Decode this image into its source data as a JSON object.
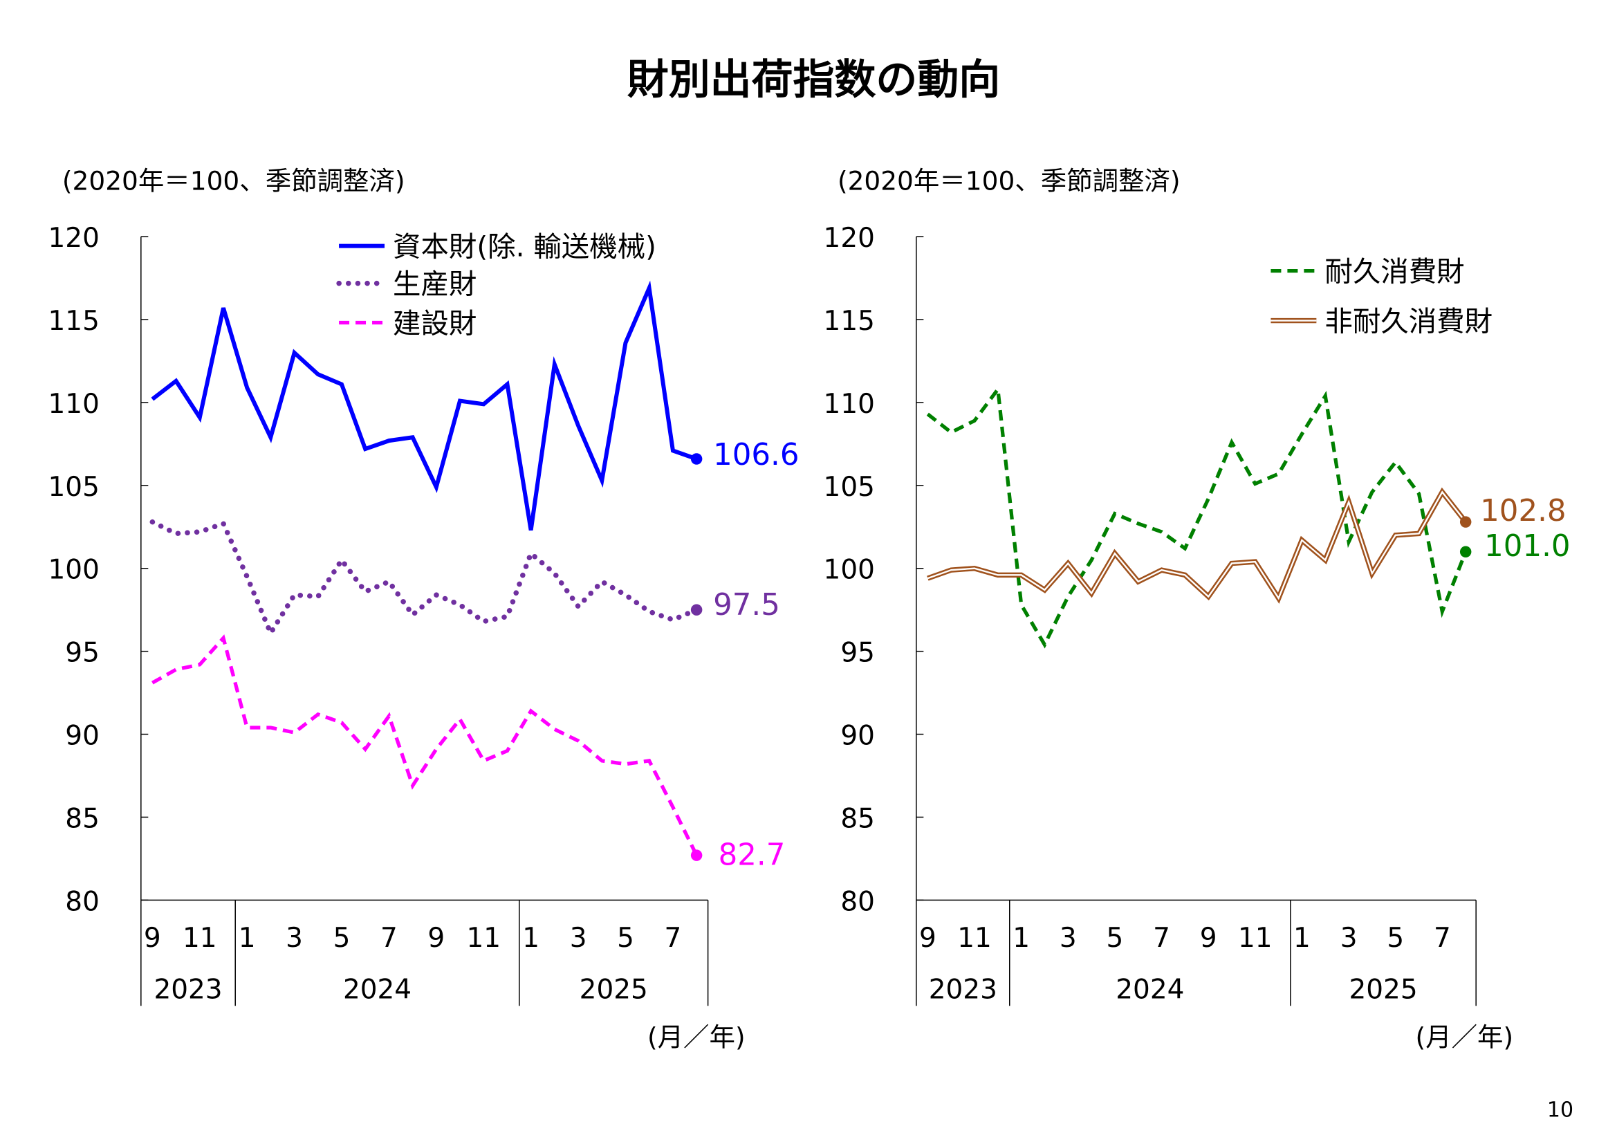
{
  "title": "財別出荷指数の動向",
  "page_number": "10",
  "chart_data": [
    {
      "type": "line",
      "subtitle": "(2020年＝100、季節調整済)",
      "xlabel": "(月／年)",
      "ylim": [
        80,
        120
      ],
      "yticks": [
        "80",
        "85",
        "90",
        "95",
        "100",
        "105",
        "110",
        "115",
        "120"
      ],
      "month_labels": [
        "9",
        "11",
        "1",
        "3",
        "5",
        "7",
        "9",
        "11",
        "1",
        "3",
        "5",
        "7"
      ],
      "years": [
        "2023",
        "2024",
        "2025"
      ],
      "x": [
        "2023-09",
        "2023-10",
        "2023-11",
        "2023-12",
        "2024-01",
        "2024-02",
        "2024-03",
        "2024-04",
        "2024-05",
        "2024-06",
        "2024-07",
        "2024-08",
        "2024-09",
        "2024-10",
        "2024-11",
        "2024-12",
        "2025-01",
        "2025-02",
        "2025-03",
        "2025-04",
        "2025-05",
        "2025-06",
        "2025-07",
        "2025-08"
      ],
      "legend_position": "top-center",
      "series": [
        {
          "name": "資本財(除. 輸送機械)",
          "color": "#0000ff",
          "style": "solid",
          "end_label": "106.6",
          "values": [
            110.2,
            111.3,
            109.1,
            115.7,
            110.9,
            107.9,
            113.0,
            111.7,
            111.1,
            107.2,
            107.7,
            107.9,
            104.9,
            110.1,
            109.9,
            111.1,
            102.3,
            112.3,
            108.6,
            105.3,
            113.6,
            116.9,
            107.1,
            106.6
          ]
        },
        {
          "name": "生産財",
          "color": "#7030a0",
          "style": "dotted",
          "end_label": "97.5",
          "values": [
            102.8,
            102.1,
            102.2,
            102.7,
            99.5,
            96.1,
            98.4,
            98.3,
            100.5,
            98.6,
            99.2,
            97.2,
            98.4,
            97.8,
            96.8,
            97.1,
            100.9,
            99.7,
            97.7,
            99.2,
            98.4,
            97.4,
            96.9,
            97.5
          ]
        },
        {
          "name": "建設財",
          "color": "#ff00ff",
          "style": "dashed",
          "end_label": "82.7",
          "values": [
            93.1,
            93.9,
            94.2,
            95.8,
            90.4,
            90.4,
            90.1,
            91.2,
            90.7,
            89.1,
            91.1,
            86.9,
            89.1,
            90.9,
            88.4,
            89.0,
            91.4,
            90.3,
            89.6,
            88.4,
            88.2,
            88.4,
            85.6,
            82.7
          ]
        }
      ]
    },
    {
      "type": "line",
      "subtitle": "(2020年＝100、季節調整済)",
      "xlabel": "(月／年)",
      "ylim": [
        80,
        120
      ],
      "yticks": [
        "80",
        "85",
        "90",
        "95",
        "100",
        "105",
        "110",
        "115",
        "120"
      ],
      "month_labels": [
        "9",
        "11",
        "1",
        "3",
        "5",
        "7",
        "9",
        "11",
        "1",
        "3",
        "5",
        "7"
      ],
      "years": [
        "2023",
        "2024",
        "2025"
      ],
      "x": [
        "2023-09",
        "2023-10",
        "2023-11",
        "2023-12",
        "2024-01",
        "2024-02",
        "2024-03",
        "2024-04",
        "2024-05",
        "2024-06",
        "2024-07",
        "2024-08",
        "2024-09",
        "2024-10",
        "2024-11",
        "2024-12",
        "2025-01",
        "2025-02",
        "2025-03",
        "2025-04",
        "2025-05",
        "2025-06",
        "2025-07",
        "2025-08"
      ],
      "legend_position": "top-right",
      "series": [
        {
          "name": "耐久消費財",
          "color": "#008000",
          "style": "dashed",
          "end_label": "101.0",
          "values": [
            109.3,
            108.2,
            108.9,
            110.8,
            97.8,
            95.4,
            98.3,
            100.5,
            103.3,
            102.7,
            102.2,
            101.2,
            104.2,
            107.6,
            105.1,
            105.7,
            108.1,
            110.4,
            101.6,
            104.6,
            106.4,
            104.5,
            97.4,
            101.0
          ]
        },
        {
          "name": "非耐久消費財",
          "color": "#a0521d",
          "style": "double",
          "end_label": "102.8",
          "values": [
            99.4,
            99.9,
            100.0,
            99.6,
            99.6,
            98.7,
            100.3,
            98.5,
            100.9,
            99.2,
            99.9,
            99.6,
            98.3,
            100.3,
            100.4,
            98.2,
            101.7,
            100.5,
            104.0,
            99.7,
            102.0,
            102.1,
            104.6,
            102.8
          ]
        }
      ]
    }
  ]
}
